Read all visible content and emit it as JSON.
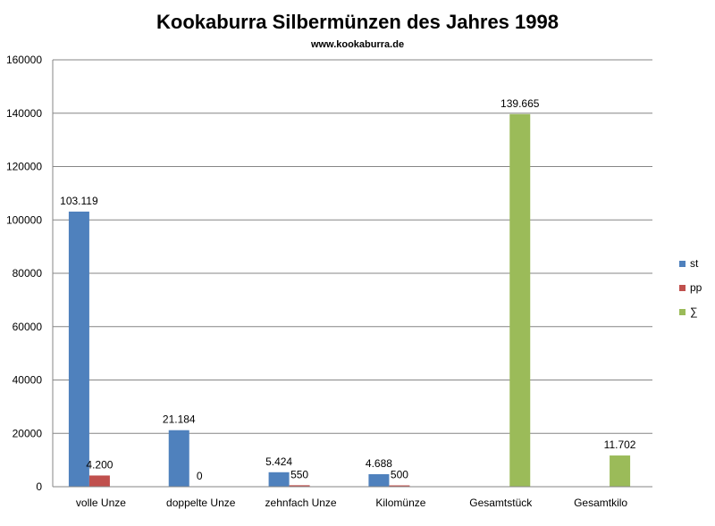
{
  "chart_data": {
    "type": "bar",
    "title": "Kookaburra Silbermünzen des Jahres 1998",
    "subtitle": "www.kookaburra.de",
    "categories": [
      "volle Unze",
      "doppelte Unze",
      "zehnfach Unze",
      "Kilomünze",
      "Gesamtstück",
      "Gesamtkilo"
    ],
    "series": [
      {
        "name": "st",
        "color": "#4F81BD",
        "values": [
          103119,
          21184,
          5424,
          4688,
          null,
          null
        ],
        "labels": [
          "103.119",
          "21.184",
          "5.424",
          "4.688",
          "",
          ""
        ]
      },
      {
        "name": "pp",
        "color": "#C0504D",
        "values": [
          4200,
          0,
          550,
          500,
          null,
          null
        ],
        "labels": [
          "4.200",
          "0",
          "550",
          "500",
          "",
          ""
        ]
      },
      {
        "name": "∑",
        "color": "#9BBB59",
        "values": [
          null,
          null,
          null,
          null,
          139665,
          11702
        ],
        "labels": [
          "",
          "",
          "",
          "",
          "139.665",
          "11.702"
        ]
      }
    ],
    "ylim": [
      0,
      160000
    ],
    "yticks": [
      0,
      20000,
      40000,
      60000,
      80000,
      100000,
      120000,
      140000,
      160000
    ],
    "grid": true,
    "legend_position": "right"
  }
}
